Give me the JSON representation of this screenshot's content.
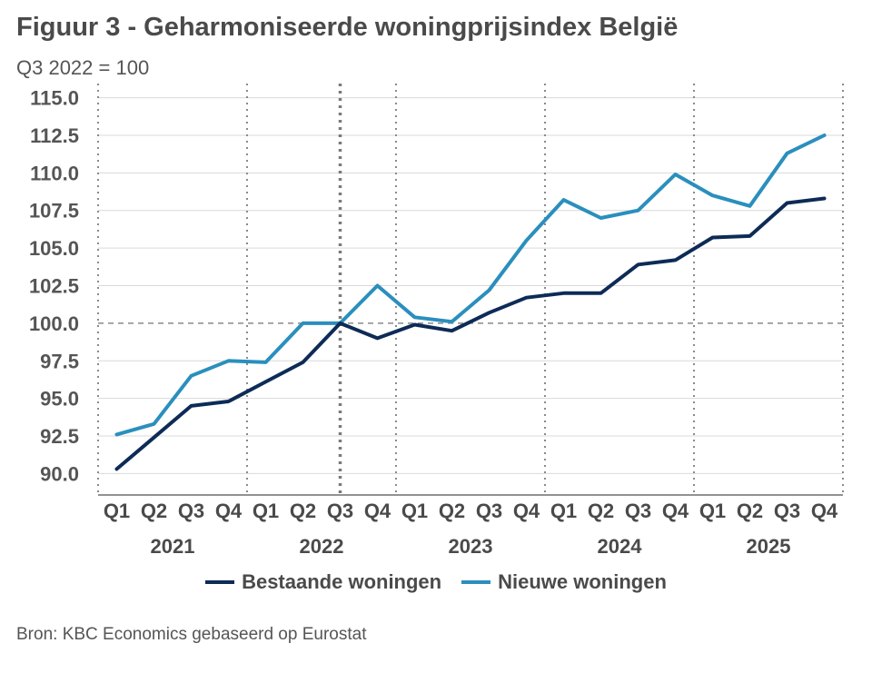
{
  "title": "Figuur 3 - Geharmoniseerde woningprijsindex België",
  "subtitle": "Q3 2022 = 100",
  "source": "Bron: KBC Economics gebaseerd op Eurostat",
  "colors": {
    "bestaande": "#0d2b56",
    "nieuwe": "#2a8fbd",
    "grid": "#d9d9d9",
    "text": "#4d4d4d"
  },
  "chart_data": {
    "type": "line",
    "title": "Figuur 3 - Geharmoniseerde woningprijsindex België",
    "subtitle": "Q3 2022 = 100",
    "x": [
      "Q1",
      "Q2",
      "Q3",
      "Q4",
      "Q1",
      "Q2",
      "Q3",
      "Q4",
      "Q1",
      "Q2",
      "Q3",
      "Q4",
      "Q1",
      "Q2",
      "Q3",
      "Q4",
      "Q1",
      "Q2",
      "Q3",
      "Q4"
    ],
    "years": [
      "2021",
      "2022",
      "2023",
      "2024",
      "2025"
    ],
    "ylim": [
      89.3,
      115.7
    ],
    "yticks": [
      "90.0",
      "92.5",
      "95.0",
      "97.5",
      "100.0",
      "102.5",
      "105.0",
      "107.5",
      "110.0",
      "112.5",
      "115.0"
    ],
    "reference_line": 100,
    "legend_position": "bottom",
    "grid": true,
    "series": [
      {
        "name": "Bestaande woningen",
        "color": "#0d2b56",
        "values": [
          90.3,
          92.4,
          94.5,
          94.8,
          96.1,
          97.4,
          100.0,
          99.0,
          99.9,
          99.5,
          100.7,
          101.7,
          102.0,
          102.0,
          103.9,
          104.2,
          105.7,
          105.8,
          108.0,
          108.3
        ]
      },
      {
        "name": "Nieuwe woningen",
        "color": "#2a8fbd",
        "values": [
          92.6,
          93.3,
          96.5,
          97.5,
          97.4,
          100.0,
          100.0,
          102.5,
          100.4,
          100.1,
          102.2,
          105.5,
          108.2,
          107.0,
          107.5,
          109.9,
          108.5,
          107.8,
          111.3,
          112.5
        ]
      }
    ]
  }
}
